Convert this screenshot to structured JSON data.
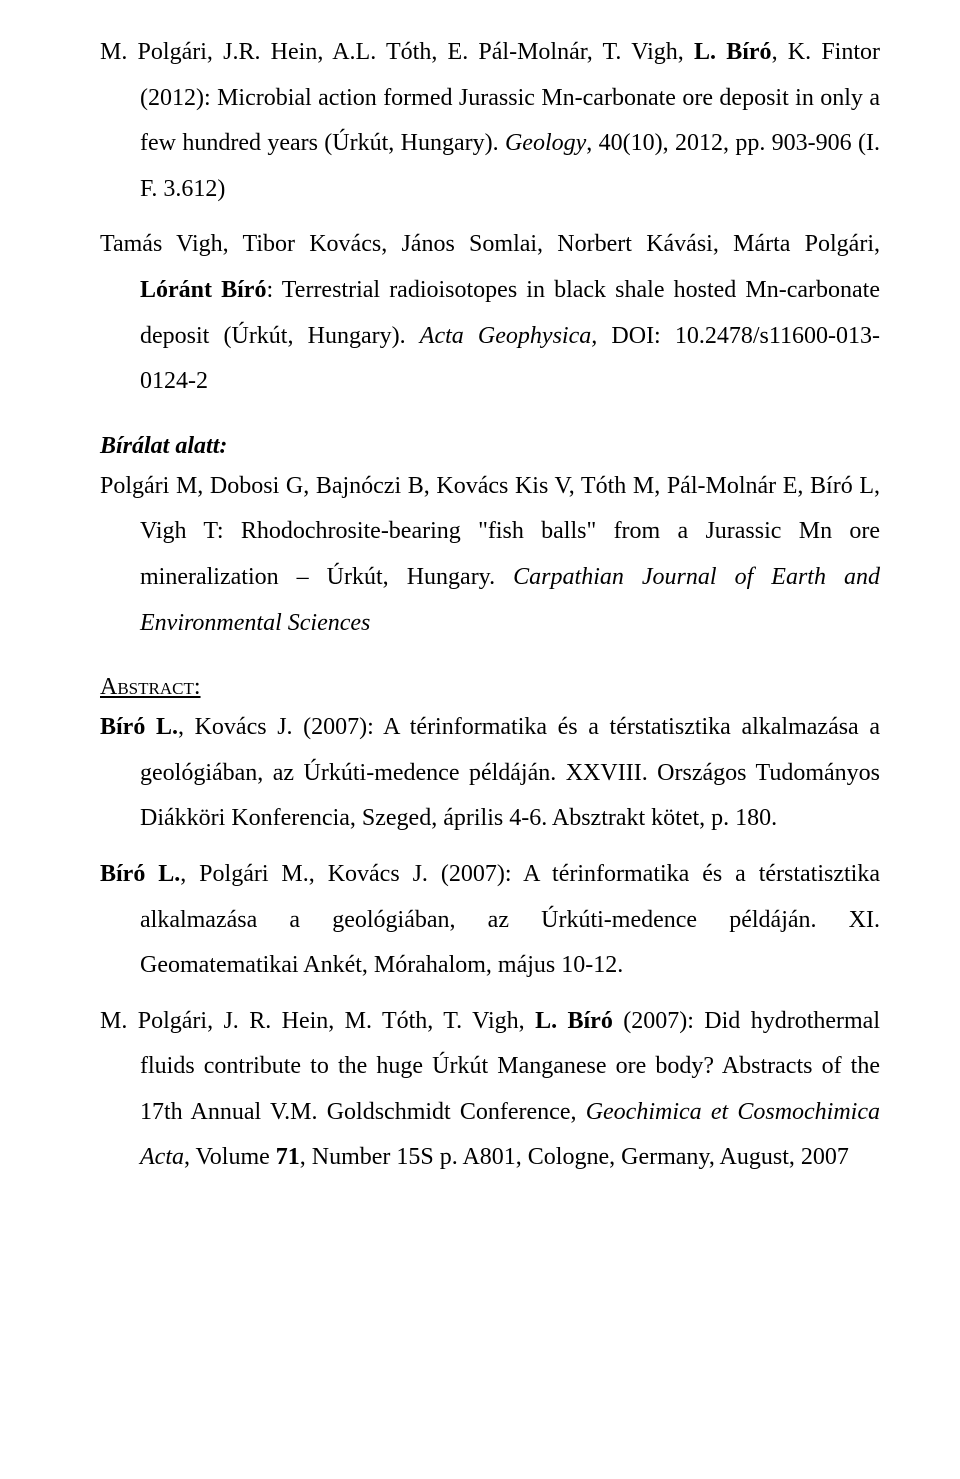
{
  "refs": {
    "r1": {
      "authors_pre": "M. Polgári, J.R. Hein, A.L. Tóth, E. Pál-Molnár, T. Vigh, ",
      "author_bold": "L. Bíró",
      "authors_post": ", K. Fintor (2012): Microbial action formed Jurassic Mn-carbonate ore deposit in only a few hundred years (Úrkút, Hungary). ",
      "journal": "Geology",
      "details": ", 40(10), 2012, pp. 903-906 (I. F. 3.612)"
    },
    "r2": {
      "authors": "Tamás Vigh, Tibor Kovács, János Somlai, Norbert Kávási, Márta Polgári, ",
      "author_bold": "Lóránt Bíró",
      "title": ": Terrestrial radioisotopes in black shale hosted Mn-carbonate deposit (Úrkút, Hungary). ",
      "journal": "Acta Geophysica,",
      "doi": " DOI: 10.2478/s11600-013-0124-2"
    }
  },
  "sections": {
    "under_review": "Bírálat alatt:",
    "abstract": "Abstract:"
  },
  "under_review": {
    "r3": {
      "text_pre": "Polgári M, Dobosi G, Bajnóczi B, Kovács Kis V, Tóth M, Pál-Molnár E, Bíró L, Vigh T: Rhodochrosite-bearing \"fish balls\" from a Jurassic Mn ore mineralization – Úrkút, Hungary. ",
      "journal": "Carpathian Journal of Earth and Environmental Sciences"
    }
  },
  "abstracts": {
    "a1": {
      "author_bold": "Bíró L.",
      "rest": ", Kovács J. (2007): A térinformatika és a térstatisztika alkalmazása a geológiában, az Úrkúti-medence példáján. XXVIII. Országos Tudományos Diákköri Konferencia, Szeged, április 4-6. Absztrakt kötet, p. 180."
    },
    "a2": {
      "author_bold": "Bíró L.",
      "rest": ", Polgári M., Kovács J. (2007): A térinformatika és a térstatisztika alkalmazása a geológiában, az Úrkúti-medence példáján. XI. Geomatematikai Ankét, Mórahalom, május 10-12."
    },
    "a3": {
      "pre": "M. Polgári, J. R. Hein, M. Tóth, T. Vigh, ",
      "author_bold": "L. Bíró",
      "mid": " (2007): Did hydrothermal fluids contribute to the huge Úrkút Manganese ore body? Abstracts of the 17th Annual V.M. Goldschmidt Conference, ",
      "journal": "Geochimica et Cosmochimica Acta",
      "post1": ", Volume ",
      "vol": "71",
      "post2": ", Number 15S p. A801, Cologne, Germany, August, 2007"
    }
  }
}
